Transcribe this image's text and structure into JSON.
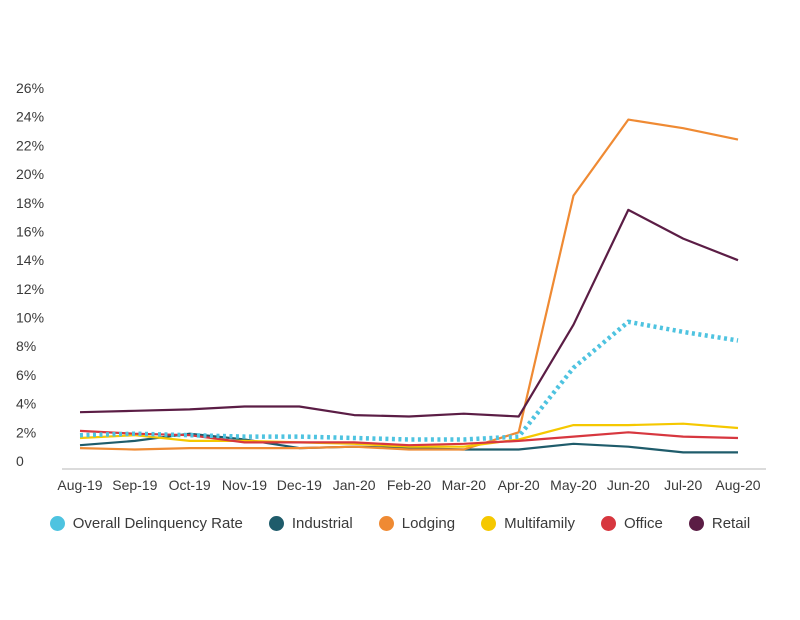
{
  "chart_data": {
    "type": "line",
    "title": "",
    "xlabel": "",
    "ylabel": "",
    "categories": [
      "Aug-19",
      "Sep-19",
      "Oct-19",
      "Nov-19",
      "Dec-19",
      "Jan-20",
      "Feb-20",
      "Mar-20",
      "Apr-20",
      "May-20",
      "Jun-20",
      "Jul-20",
      "Aug-20"
    ],
    "ylim": [
      0,
      26
    ],
    "yticks": [
      0,
      2,
      4,
      6,
      8,
      10,
      12,
      14,
      16,
      18,
      20,
      22,
      24,
      26
    ],
    "ytick_labels": [
      "0",
      "2%",
      "4%",
      "6%",
      "8%",
      "10%",
      "12%",
      "14%",
      "16%",
      "18%",
      "20%",
      "22%",
      "24%",
      "26%"
    ],
    "grid": false,
    "legend_position": "bottom",
    "series": [
      {
        "name": "Overall Delinquency Rate",
        "color": "#4ec3e0",
        "dashed": true,
        "values": [
          1.8,
          1.9,
          1.8,
          1.7,
          1.7,
          1.6,
          1.5,
          1.5,
          1.7,
          6.5,
          9.7,
          9.0,
          8.4
        ]
      },
      {
        "name": "Industrial",
        "color": "#1f5c6b",
        "values": [
          1.1,
          1.4,
          1.9,
          1.5,
          0.9,
          1.0,
          0.9,
          0.8,
          0.8,
          1.2,
          1.0,
          0.6,
          0.6
        ]
      },
      {
        "name": "Lodging",
        "color": "#ef8a33",
        "values": [
          0.9,
          0.8,
          0.9,
          0.9,
          0.9,
          1.0,
          0.8,
          0.8,
          2.0,
          18.5,
          23.8,
          23.2,
          22.4
        ]
      },
      {
        "name": "Multifamily",
        "color": "#f5c800",
        "values": [
          1.6,
          1.8,
          1.4,
          1.4,
          1.3,
          1.2,
          1.0,
          1.0,
          1.5,
          2.5,
          2.5,
          2.6,
          2.3
        ]
      },
      {
        "name": "Office",
        "color": "#d7373f",
        "values": [
          2.1,
          1.9,
          1.8,
          1.3,
          1.3,
          1.3,
          1.1,
          1.2,
          1.4,
          1.7,
          2.0,
          1.7,
          1.6
        ]
      },
      {
        "name": "Retail",
        "color": "#5b1d45",
        "values": [
          3.4,
          3.5,
          3.6,
          3.8,
          3.8,
          3.2,
          3.1,
          3.3,
          3.1,
          9.5,
          17.5,
          15.5,
          14.0
        ]
      }
    ]
  }
}
